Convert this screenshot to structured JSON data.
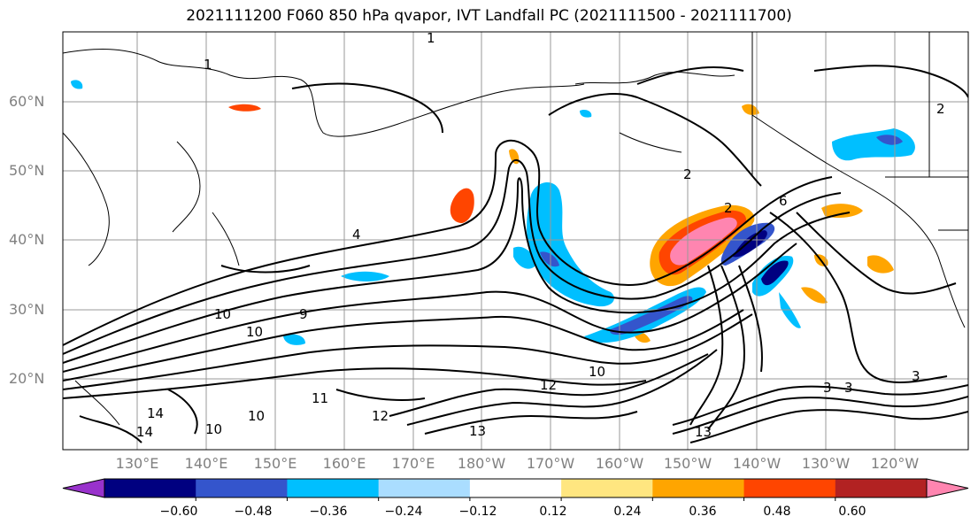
{
  "title": "2021111200 F060 850 hPa qvapor, IVT Landfall PC (2021111500 - 2021111700)",
  "lat_labels": [
    "60°N",
    "50°N",
    "40°N",
    "30°N",
    "20°N"
  ],
  "lon_labels": [
    "130°E",
    "140°E",
    "150°E",
    "160°E",
    "170°E",
    "180°W",
    "170°W",
    "160°W",
    "150°W",
    "140°W",
    "130°W",
    "120°W"
  ],
  "colorbar": {
    "colors": [
      "#9932cc",
      "#000080",
      "#3455cc",
      "#00bfff",
      "#aaddff",
      "#ffffff",
      "#ffe680",
      "#ffa500",
      "#ff4500",
      "#b22222",
      "#ff85b0"
    ],
    "tick_labels": [
      "−0.60",
      "−0.48",
      "−0.36",
      "−0.24",
      "−0.12",
      "0.12",
      "0.24",
      "0.36",
      "0.48",
      "0.60"
    ]
  },
  "contour_labels": [
    "1",
    "1",
    "2",
    "2",
    "2",
    "3",
    "3",
    "3",
    "4",
    "6",
    "9",
    "10",
    "10",
    "10",
    "10",
    "10",
    "11",
    "12",
    "12",
    "13",
    "13",
    "14",
    "14"
  ]
}
